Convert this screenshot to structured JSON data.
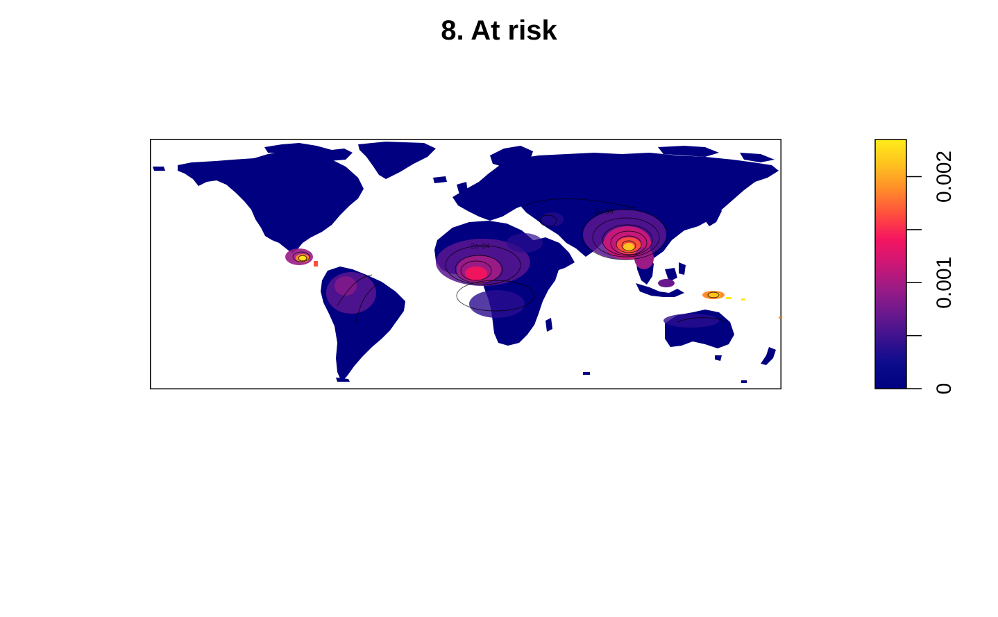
{
  "title": "8. At risk",
  "map": {
    "type": "raster-heatmap-world",
    "color_scale": [
      "#000080",
      "#00008B",
      "#2B0D8F",
      "#5A1590",
      "#8A1A89",
      "#C4197A",
      "#F0145F",
      "#FF4B3C",
      "#FF8A28",
      "#FFC81E",
      "#FFE81A"
    ],
    "contour_labels": [
      "2e-04"
    ],
    "hotspots": [
      {
        "name": "central-america",
        "intensity": 0.0024
      },
      {
        "name": "west-africa",
        "intensity": 0.0013
      },
      {
        "name": "south-asia",
        "intensity": 0.002
      },
      {
        "name": "new-guinea",
        "intensity": 0.0022
      }
    ]
  },
  "legend": {
    "ticks": [
      "0",
      "0.001",
      "0.002"
    ],
    "tick_values": [
      0,
      0.0005,
      0.001,
      0.0015,
      0.002
    ],
    "labeled_values": [
      0,
      0.001,
      0.002
    ],
    "range": [
      0,
      0.00235
    ],
    "colors": [
      "#000080",
      "#0B0C8C",
      "#3A128F",
      "#6A188E",
      "#9A1B86",
      "#CC1776",
      "#F51560",
      "#FF4E3E",
      "#FF8C2A",
      "#FFC21F",
      "#FFEC1A"
    ]
  }
}
